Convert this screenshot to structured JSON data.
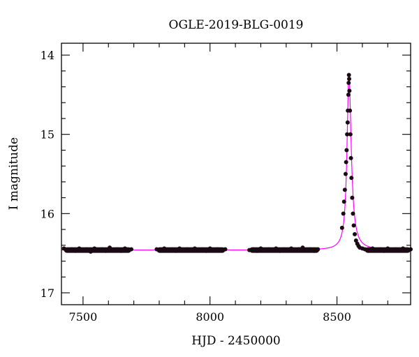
{
  "chart_data": {
    "type": "scatter",
    "title": "OGLE-2019-BLG-0019",
    "xlabel": "HJD - 2450000",
    "ylabel": "I magnitude",
    "xlim": [
      7415,
      8790
    ],
    "ylim": [
      17.15,
      13.85
    ],
    "y_inverted": true,
    "x_ticks": [
      7500,
      8000,
      8500
    ],
    "y_ticks": [
      14,
      15,
      16,
      17
    ],
    "x_minor_step": 100,
    "y_minor_step": 0.2,
    "grid": false,
    "colors": {
      "points": "#1a0a14",
      "model": "#ff00ff",
      "axes": "#000000"
    },
    "model": {
      "baseline": 16.46,
      "peak_time": 8547,
      "peak_mag": 14.25,
      "rise_tau": 9,
      "fall_tau": 11
    },
    "observing_seasons": [
      [
        7425,
        7690
      ],
      [
        7790,
        8060
      ],
      [
        8155,
        8430
      ],
      [
        8610,
        8790
      ]
    ],
    "series": [
      {
        "x": [
          7425,
          7440,
          7455,
          7470,
          7485,
          7500,
          7515,
          7530,
          7545,
          7560,
          7575,
          7590,
          7605,
          7620,
          7635,
          7650,
          7665,
          7680,
          7690,
          7790,
          7805,
          7820,
          7835,
          7850,
          7865,
          7880,
          7895,
          7910,
          7925,
          7940,
          7955,
          7970,
          7985,
          8000,
          8015,
          8030,
          8045,
          8060,
          8155,
          8170,
          8185,
          8200,
          8215,
          8230,
          8245,
          8260,
          8275,
          8290,
          8305,
          8320,
          8335,
          8350,
          8365,
          8380,
          8395,
          8410,
          8425,
          8520,
          8525,
          8528,
          8531,
          8534,
          8536,
          8538,
          8540,
          8542,
          8543,
          8545,
          8546,
          8547,
          8548,
          8549,
          8551,
          8553,
          8555,
          8557,
          8560,
          8563,
          8566,
          8570,
          8575,
          8580,
          8585,
          8590,
          8600,
          8610,
          8625,
          8640,
          8655,
          8670,
          8685,
          8700,
          8715,
          8730,
          8745,
          8760,
          8775,
          8790
        ],
        "y": [
          16.44,
          16.46,
          16.45,
          16.47,
          16.44,
          16.46,
          16.45,
          16.48,
          16.44,
          16.46,
          16.45,
          16.47,
          16.43,
          16.46,
          16.45,
          16.47,
          16.44,
          16.46,
          16.45,
          16.45,
          16.46,
          16.44,
          16.46,
          16.45,
          16.47,
          16.44,
          16.46,
          16.45,
          16.46,
          16.44,
          16.46,
          16.45,
          16.47,
          16.44,
          16.46,
          16.45,
          16.46,
          16.45,
          16.46,
          16.45,
          16.47,
          16.44,
          16.46,
          16.45,
          16.46,
          16.44,
          16.47,
          16.45,
          16.46,
          16.44,
          16.46,
          16.45,
          16.43,
          16.46,
          16.45,
          16.47,
          16.45,
          16.18,
          16.0,
          15.85,
          15.7,
          15.5,
          15.35,
          15.2,
          15.0,
          14.85,
          14.7,
          14.5,
          14.35,
          14.25,
          14.3,
          14.45,
          14.7,
          15.0,
          15.3,
          15.55,
          15.8,
          16.0,
          16.15,
          16.26,
          16.34,
          16.38,
          16.41,
          16.43,
          16.44,
          16.45,
          16.46,
          16.44,
          16.46,
          16.45,
          16.47,
          16.44,
          16.46,
          16.45,
          16.46,
          16.44,
          16.46,
          16.45
        ]
      }
    ]
  }
}
